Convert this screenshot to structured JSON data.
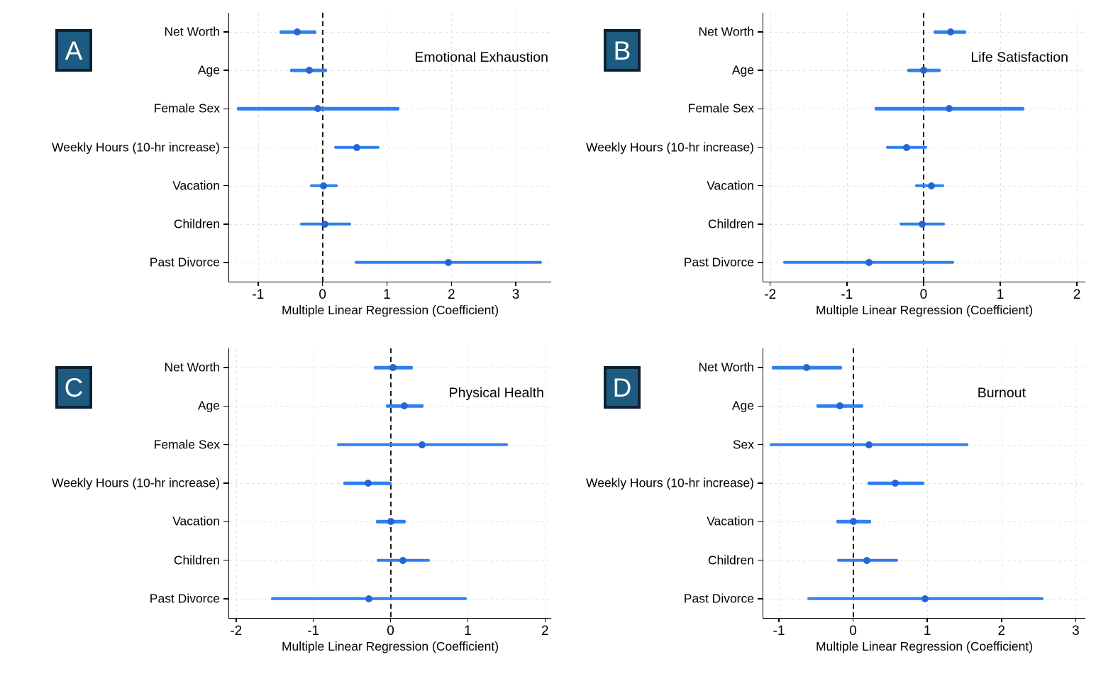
{
  "figure": {
    "name": "Multivariable regression coefficient plots",
    "x_axis_label": "Multiple Linear Regression (Coefficient)",
    "colors": {
      "ci_line": "#2F80F0",
      "point_marker": "#2566D2",
      "badge_fill": "#1D5C80",
      "badge_border": "#0D2130",
      "grid": "#E4E4E4",
      "reference_line": "#1A1A1A"
    }
  },
  "chart_data": [
    {
      "type": "scatter",
      "subtype": "forest-coefficient-plot",
      "panel_letter": "A",
      "title": "Emotional Exhaustion",
      "xlabel": "Multiple Linear Regression (Coefficient)",
      "xlim": [
        -1.45,
        3.55
      ],
      "xticks": [
        -1,
        0,
        1,
        2,
        3
      ],
      "reference_line_x": 0,
      "grid": true,
      "categories": [
        "Net Worth",
        "Age",
        "Female Sex",
        "Weekly Hours (10-hr increase)",
        "Vacation",
        "Children",
        "Past Divorce"
      ],
      "estimates": [
        -0.39,
        -0.21,
        -0.07,
        0.53,
        0.01,
        0.04,
        1.95
      ],
      "ci_low": [
        -0.67,
        -0.5,
        -1.33,
        0.18,
        -0.2,
        -0.35,
        0.5
      ],
      "ci_high": [
        -0.1,
        0.07,
        1.19,
        0.89,
        0.23,
        0.44,
        3.41
      ]
    },
    {
      "type": "scatter",
      "subtype": "forest-coefficient-plot",
      "panel_letter": "B",
      "title": "Life Satisfaction",
      "xlabel": "Multiple Linear Regression (Coefficient)",
      "xlim": [
        -2.09,
        2.11
      ],
      "xticks": [
        -2,
        -1,
        0,
        1,
        2
      ],
      "reference_line_x": 0,
      "grid": true,
      "categories": [
        "Net Worth",
        "Age",
        "Female Sex",
        "Weekly Hours (10-hr increase)",
        "Vacation",
        "Children",
        "Past Divorce"
      ],
      "estimates": [
        0.35,
        0.0,
        0.33,
        -0.22,
        0.1,
        -0.02,
        -0.71
      ],
      "ci_low": [
        0.13,
        -0.21,
        -0.64,
        -0.49,
        -0.11,
        -0.31,
        -1.83
      ],
      "ci_high": [
        0.56,
        0.22,
        1.31,
        0.05,
        0.27,
        0.28,
        0.4
      ]
    },
    {
      "type": "scatter",
      "subtype": "forest-coefficient-plot",
      "panel_letter": "C",
      "title": "Physical Health",
      "xlabel": "Multiple Linear Regression (Coefficient)",
      "xlim": [
        -2.09,
        2.08
      ],
      "xticks": [
        -2,
        -1,
        0,
        1,
        2
      ],
      "reference_line_x": 0,
      "grid": true,
      "categories": [
        "Net Worth",
        "Age",
        "Female Sex",
        "Weekly Hours (10-hr increase)",
        "Vacation",
        "Children",
        "Past Divorce"
      ],
      "estimates": [
        0.03,
        0.18,
        0.41,
        -0.29,
        0.0,
        0.16,
        -0.28
      ],
      "ci_low": [
        -0.22,
        -0.06,
        -0.69,
        -0.61,
        -0.19,
        -0.18,
        -1.55
      ],
      "ci_high": [
        0.29,
        0.43,
        1.52,
        0.01,
        0.2,
        0.51,
        0.99
      ]
    },
    {
      "type": "scatter",
      "subtype": "forest-coefficient-plot",
      "panel_letter": "D",
      "title": "Burnout",
      "xlabel": "Multiple Linear Regression (Coefficient)",
      "xlim": [
        -1.21,
        3.13
      ],
      "xticks": [
        -1,
        0,
        1,
        2,
        3
      ],
      "reference_line_x": 0,
      "grid": true,
      "categories": [
        "Net Worth",
        "Age",
        "Sex",
        "Weekly Hours (10-hr increase)",
        "Vacation",
        "Children",
        "Past Divorce"
      ],
      "estimates": [
        -0.63,
        -0.18,
        0.21,
        0.57,
        0.0,
        0.19,
        0.97
      ],
      "ci_low": [
        -1.1,
        -0.49,
        -1.12,
        0.2,
        -0.23,
        -0.22,
        -0.62
      ],
      "ci_high": [
        -0.15,
        0.14,
        1.55,
        0.96,
        0.24,
        0.61,
        2.57
      ]
    }
  ]
}
